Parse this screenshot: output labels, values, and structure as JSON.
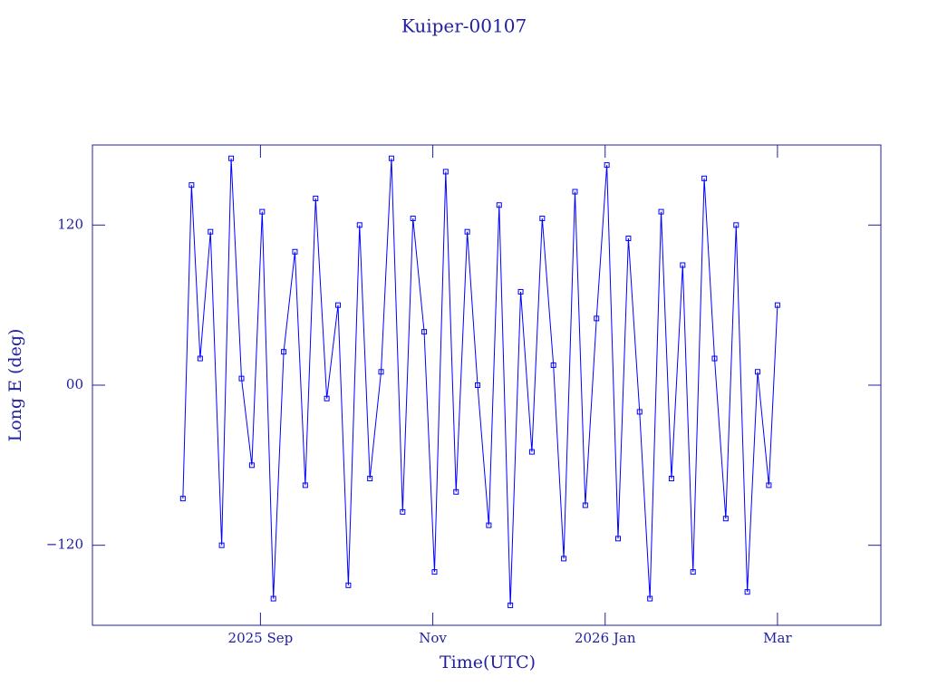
{
  "chart_data": {
    "type": "line",
    "title": "Kuiper-00107",
    "x_label": "Time(UTC)",
    "y_label": "Long E (deg)",
    "xlim": [
      7.05,
      16.2
    ],
    "xticks": [
      {
        "value": 9,
        "label": "2025 Sep"
      },
      {
        "value": 11,
        "label": "Nov"
      },
      {
        "value": 13,
        "label": "2026 Jan"
      },
      {
        "value": 15,
        "label": "Mar"
      }
    ],
    "ylim": [
      -180,
      180
    ],
    "yticks": [
      {
        "value": -120,
        "label": "−120"
      },
      {
        "value": 0,
        "label": "00"
      },
      120
    ],
    "markers": true,
    "series": [
      {
        "color": "#0000ff",
        "x": [
          8.1,
          8.2,
          8.3,
          8.42,
          8.55,
          8.66,
          8.78,
          8.9,
          9.02,
          9.15,
          9.27,
          9.4,
          9.52,
          9.64,
          9.77,
          9.9,
          10.02,
          10.15,
          10.27,
          10.4,
          10.52,
          10.65,
          10.77,
          10.9,
          11.02,
          11.15,
          11.27,
          11.4,
          11.52,
          11.65,
          11.77,
          11.9,
          12.02,
          12.15,
          12.27,
          12.4,
          12.52,
          12.65,
          12.77,
          12.9,
          13.02,
          13.15,
          13.27,
          13.4,
          13.52,
          13.65,
          13.77,
          13.9,
          14.02,
          14.15,
          14.27,
          14.4,
          14.52,
          14.65,
          14.77,
          14.9,
          15.0
        ],
        "values": [
          -85,
          150,
          20,
          115,
          -120,
          170,
          5,
          -60,
          130,
          -160,
          25,
          100,
          -75,
          140,
          -10,
          60,
          -150,
          120,
          -70,
          10,
          170,
          -95,
          125,
          40,
          -140,
          160,
          -80,
          115,
          0,
          -105,
          135,
          -165,
          70,
          -50,
          125,
          15,
          -130,
          145,
          -90,
          50,
          165,
          -115,
          110,
          -20,
          -160,
          130,
          -70,
          90,
          -140,
          155,
          20,
          -100,
          120,
          -155,
          10,
          -75,
          60
        ]
      }
    ]
  }
}
